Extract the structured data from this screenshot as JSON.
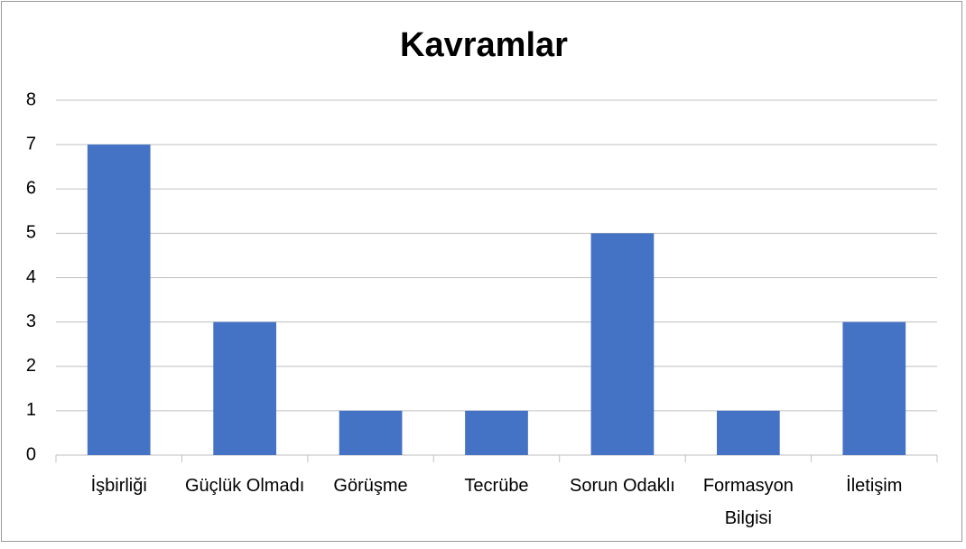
{
  "chart_data": {
    "type": "bar",
    "title": "Kavramlar",
    "categories": [
      "İşbirliği",
      "Güçlük Olmadı",
      "Görüşme",
      "Tecrübe",
      "Sorun Odaklı",
      "Formasyon Bilgisi",
      "İletişim"
    ],
    "values": [
      7,
      3,
      1,
      1,
      5,
      1,
      3
    ],
    "color": "#4472c4",
    "ylim": [
      0,
      8
    ],
    "yticks": [
      0,
      1,
      2,
      3,
      4,
      5,
      6,
      7,
      8
    ],
    "grid": true
  }
}
